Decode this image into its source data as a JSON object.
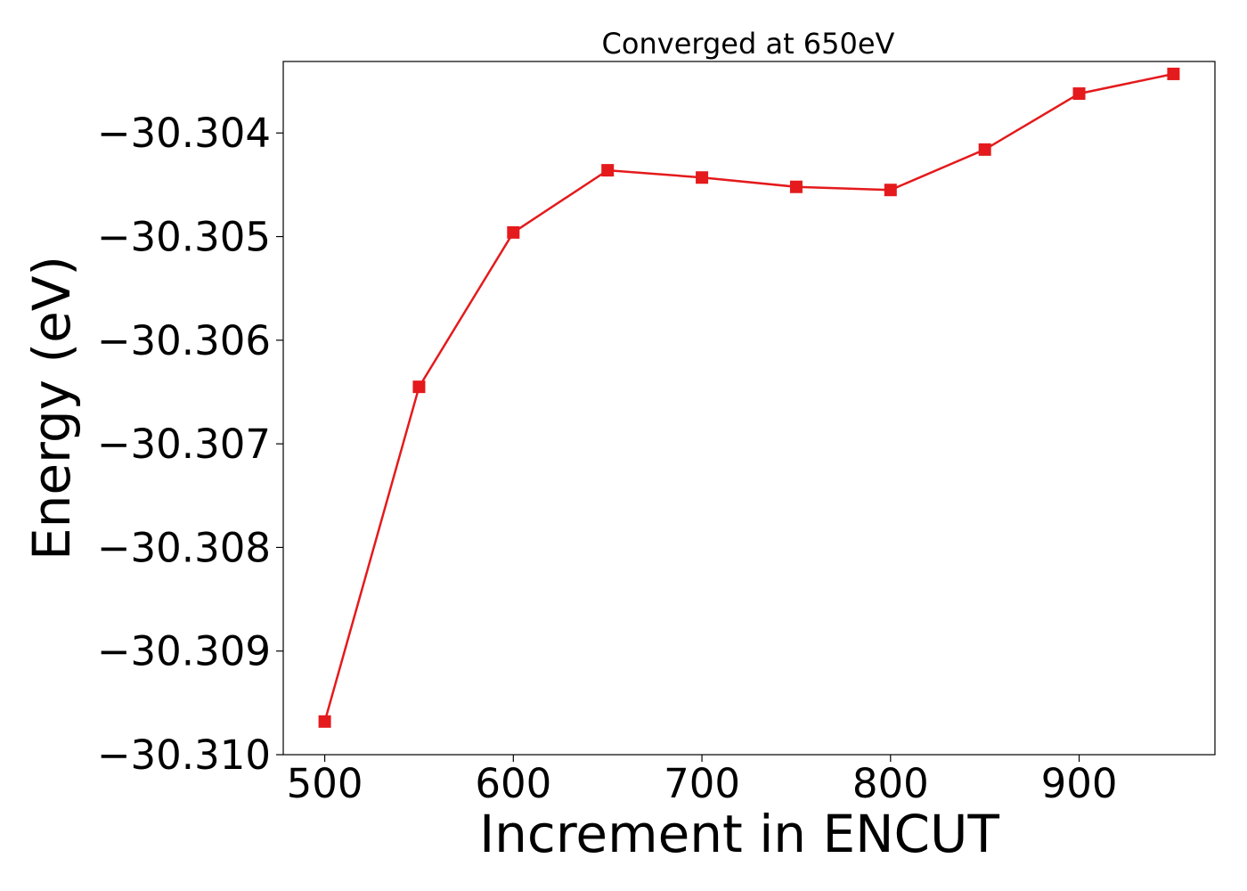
{
  "chart_data": {
    "type": "line",
    "title": "Converged at 650eV",
    "xlabel": "Increment in ENCUT",
    "ylabel": "Energy (eV)",
    "x": [
      500,
      550,
      600,
      650,
      700,
      750,
      800,
      850,
      900,
      950
    ],
    "series": [
      {
        "values": [
          -30.30968,
          -30.30645,
          -30.30496,
          -30.30436,
          -30.30443,
          -30.30452,
          -30.30455,
          -30.30416,
          -30.30362,
          -30.30343
        ],
        "color": "#e41a1c",
        "marker": "square"
      }
    ],
    "xlim": [
      478,
      972
    ],
    "ylim": [
      -30.31,
      -30.30331
    ],
    "xticks": [
      500,
      600,
      700,
      800,
      900
    ],
    "xtick_labels": [
      "500",
      "600",
      "700",
      "800",
      "900"
    ],
    "yticks": [
      -30.31,
      -30.309,
      -30.308,
      -30.307,
      -30.306,
      -30.305,
      -30.304
    ],
    "ytick_labels": [
      "−30.310",
      "−30.309",
      "−30.308",
      "−30.307",
      "−30.306",
      "−30.305",
      "−30.304"
    ],
    "grid": false,
    "legend": "none"
  }
}
